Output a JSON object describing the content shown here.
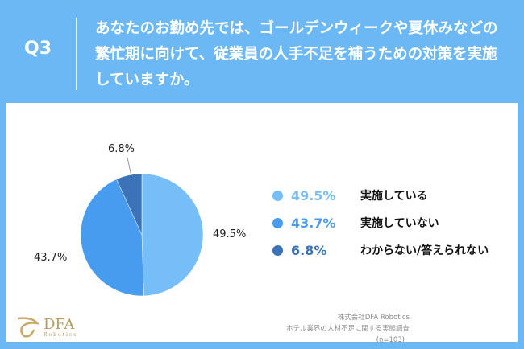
{
  "header": {
    "q": "Q3",
    "question": "あなたのお勤め先では、ゴールデンウィークや夏休みなどの繁忙期に向けて、従業員の人手不足を補うための対策を実施していますか。"
  },
  "chart_data": {
    "type": "pie",
    "title": "",
    "categories": [
      "実施している",
      "実施していない",
      "わからない/答えられない"
    ],
    "values": [
      49.5,
      43.7,
      6.8
    ],
    "labels": [
      "49.5%",
      "43.7%",
      "6.8%"
    ],
    "colors": [
      "#75bef8",
      "#479cf0",
      "#3b72b8"
    ],
    "legend": "right"
  },
  "footer": {
    "company": "株式会社DFA Robotics",
    "survey": "ホテル業界の人材不足に関する実態調査",
    "n": "(n=103)",
    "logo": "DFA Robotics"
  }
}
